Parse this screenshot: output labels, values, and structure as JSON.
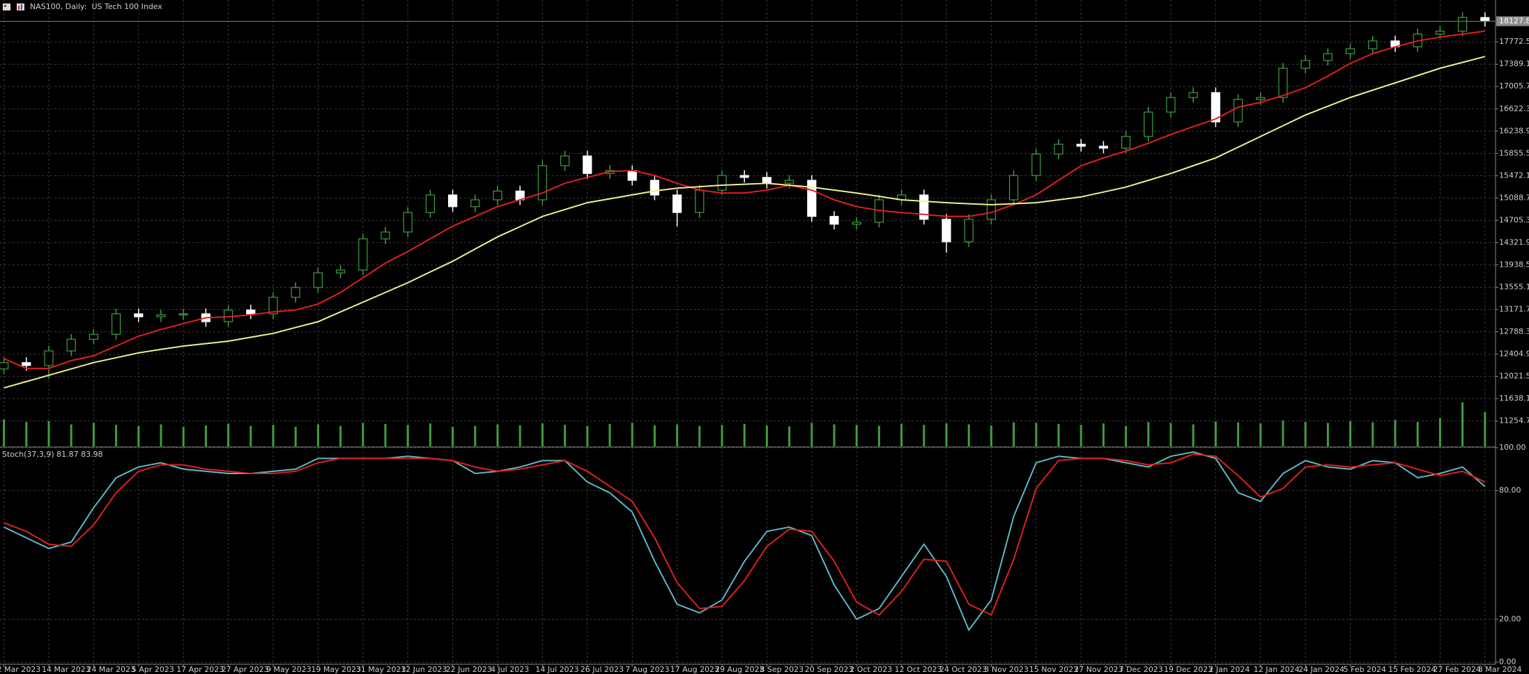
{
  "chart_data": [
    {
      "type": "candlestick",
      "title": "NAS100, Daily:  US Tech 100 Index",
      "categories": [
        "2 Mar 2023",
        null,
        "14 Mar 2023",
        null,
        "24 Mar 2023",
        null,
        "5 Apr 2023",
        null,
        "17 Apr 2023",
        null,
        "27 Apr 2023",
        null,
        "9 May 2023",
        null,
        "19 May 2023",
        null,
        "31 May 2023",
        null,
        "12 Jun 2023",
        null,
        "22 Jun 2023",
        null,
        "4 Jul 2023",
        null,
        "14 Jul 2023",
        null,
        "26 Jul 2023",
        null,
        "7 Aug 2023",
        null,
        "17 Aug 2023",
        null,
        "29 Aug 2023",
        null,
        "8 Sep 2023",
        null,
        "20 Sep 2023",
        null,
        "2 Oct 2023",
        null,
        "12 Oct 2023",
        null,
        "24 Oct 2023",
        null,
        "3 Nov 2023",
        null,
        "15 Nov 2023",
        null,
        "27 Nov 2023",
        null,
        "7 Dec 2023",
        null,
        "19 Dec 2023",
        null,
        "2 Jan 2024",
        null,
        "12 Jan 2024",
        null,
        "24 Jan 2024",
        null,
        "5 Feb 2024",
        null,
        "15 Feb 2024",
        null,
        "27 Feb 2024",
        null,
        "8 Mar 2024"
      ],
      "open": [
        12150,
        12259,
        12209,
        12460,
        12661,
        12745,
        13097,
        13047,
        13080,
        13097,
        12963,
        13164,
        13097,
        13382,
        13550,
        13801,
        13851,
        14387,
        14505,
        14840,
        15141,
        14940,
        15058,
        15208,
        15058,
        15644,
        15812,
        15510,
        15560,
        15393,
        15141,
        14840,
        15225,
        15476,
        15443,
        15343,
        15393,
        14773,
        14639,
        14673,
        15058,
        15141,
        14723,
        14337,
        14723,
        15058,
        15476,
        15845,
        16013,
        15979,
        15946,
        16147,
        16566,
        16817,
        16901,
        16398,
        16784,
        16817,
        17320,
        17454,
        17571,
        17655,
        17789,
        17689,
        17907,
        17957,
        18192
      ],
      "high": [
        12349,
        12349,
        12550,
        12751,
        12835,
        13187,
        13187,
        13170,
        13187,
        13187,
        13254,
        13254,
        13472,
        13640,
        13891,
        13941,
        14477,
        14595,
        14930,
        15231,
        15231,
        15148,
        15298,
        15298,
        15734,
        15902,
        15902,
        15650,
        15650,
        15483,
        15231,
        15315,
        15566,
        15566,
        15533,
        15483,
        15483,
        14863,
        14763,
        15148,
        15231,
        15231,
        14813,
        14813,
        15148,
        15566,
        15935,
        16103,
        16103,
        16069,
        16237,
        16656,
        16907,
        16991,
        16991,
        16874,
        16907,
        17410,
        17544,
        17661,
        17745,
        17879,
        17879,
        17997,
        18047,
        18282,
        18282
      ],
      "low": [
        12060,
        12119,
        11980,
        12370,
        12571,
        12655,
        12957,
        12957,
        12990,
        12873,
        12873,
        13007,
        13007,
        13292,
        13460,
        13711,
        13761,
        14297,
        14415,
        14750,
        14850,
        14850,
        14968,
        14968,
        14968,
        15554,
        15420,
        15420,
        15303,
        15051,
        14600,
        14750,
        15135,
        15353,
        15253,
        15253,
        14683,
        14549,
        14549,
        14583,
        14968,
        14633,
        14150,
        14247,
        14633,
        14968,
        15386,
        15755,
        15889,
        15856,
        15856,
        16057,
        16476,
        16727,
        16308,
        16308,
        16694,
        16727,
        17230,
        17364,
        17481,
        17565,
        17599,
        17599,
        17817,
        17867,
        18038
      ],
      "close": [
        12259,
        12209,
        12460,
        12661,
        12745,
        13097,
        13047,
        13080,
        13097,
        12963,
        13164,
        13097,
        13382,
        13550,
        13801,
        13851,
        14387,
        14505,
        14840,
        15141,
        14940,
        15058,
        15208,
        15058,
        15644,
        15812,
        15510,
        15560,
        15393,
        15141,
        14840,
        15225,
        15476,
        15443,
        15343,
        15393,
        14773,
        14639,
        14673,
        15058,
        15141,
        14723,
        14337,
        14723,
        15058,
        15476,
        15845,
        16013,
        15979,
        15946,
        16147,
        16566,
        16817,
        16901,
        16398,
        16784,
        16817,
        17320,
        17454,
        17571,
        17655,
        17789,
        17689,
        17907,
        17957,
        18192,
        18127.8
      ],
      "ma_lines": [
        {
          "color": "#e0201f",
          "values": [
            12327,
            12159,
            12159,
            12293,
            12377,
            12544,
            12712,
            12829,
            12930,
            13030,
            13047,
            13081,
            13131,
            13164,
            13265,
            13466,
            13717,
            13969,
            14170,
            14388,
            14605,
            14773,
            14941,
            15058,
            15175,
            15342,
            15443,
            15544,
            15561,
            15477,
            15342,
            15225,
            15175,
            15175,
            15225,
            15309,
            15225,
            15058,
            14941,
            14874,
            14840,
            14807,
            14773,
            14773,
            14840,
            14974,
            15142,
            15393,
            15644,
            15778,
            15896,
            16030,
            16181,
            16315,
            16449,
            16650,
            16733,
            16851,
            16985,
            17186,
            17404,
            17571,
            17689,
            17789,
            17856,
            17907,
            17957
          ]
        },
        {
          "color": "#f2f08c",
          "values": [
            11824,
            11933,
            12042,
            12151,
            12260,
            12343,
            12427,
            12486,
            12544,
            12586,
            12628,
            12695,
            12762,
            12863,
            12963,
            13131,
            13298,
            13466,
            13633,
            13818,
            14002,
            14212,
            14421,
            14597,
            14773,
            14891,
            15008,
            15075,
            15142,
            15209,
            15259,
            15284,
            15309,
            15326,
            15342,
            15309,
            15276,
            15225,
            15175,
            15117,
            15058,
            15033,
            15008,
            14991,
            14974,
            14991,
            15008,
            15058,
            15108,
            15192,
            15276,
            15393,
            15510,
            15644,
            15778,
            15963,
            16147,
            16331,
            16516,
            16666,
            16817,
            16943,
            17069,
            17194,
            17320,
            17420,
            17521
          ]
        }
      ],
      "volume": [
        55,
        50,
        52,
        45,
        48,
        44,
        42,
        45,
        40,
        43,
        46,
        42,
        44,
        40,
        45,
        42,
        48,
        46,
        44,
        47,
        40,
        42,
        45,
        43,
        47,
        44,
        42,
        46,
        48,
        43,
        45,
        42,
        44,
        46,
        43,
        41,
        48,
        45,
        44,
        42,
        46,
        44,
        47,
        45,
        43,
        49,
        48,
        46,
        44,
        47,
        42,
        50,
        48,
        45,
        51,
        49,
        47,
        53,
        50,
        48,
        52,
        49,
        54,
        50,
        58,
        90,
        70
      ],
      "vlim": [
        0,
        100
      ],
      "volume_color": "#3f9f3f",
      "bull_color": "#3f9f3f",
      "bear_color": "#ffffff",
      "ylim": [
        10820,
        18493
      ],
      "yticks": [
        17772.5,
        17389.1,
        17005.7,
        16622.3,
        16238.9,
        15855.5,
        15472.1,
        15088.7,
        14705.3,
        14321.9,
        13938.5,
        13555.1,
        13171.7,
        12788.3,
        12404.9,
        12021.5,
        11638.1,
        11254.7
      ],
      "grid": true
    },
    {
      "type": "stochastic",
      "title": "Stoch(37,3,9) 81.87 83.98",
      "series": [
        {
          "color": "#5fb8c8",
          "values": [
            63,
            58,
            53,
            56,
            72,
            86,
            91,
            93,
            90,
            89,
            88,
            88,
            89,
            90,
            95,
            95,
            95,
            95,
            96,
            95,
            94,
            88,
            89,
            91,
            94,
            94,
            84,
            79,
            70,
            47,
            27,
            23,
            29,
            47,
            61,
            63,
            59,
            36,
            20,
            25,
            40,
            55,
            40,
            15,
            29,
            68,
            93,
            96,
            95,
            95,
            93,
            91,
            96,
            98,
            95,
            79,
            75,
            88,
            94,
            91,
            90,
            94,
            93,
            86,
            88,
            91,
            81.87
          ]
        },
        {
          "color": "#e0201f",
          "values": [
            65,
            61,
            55,
            54,
            64,
            79,
            89,
            92,
            92,
            90,
            89,
            88,
            88,
            89,
            93,
            95,
            95,
            95,
            95,
            95,
            94,
            91,
            89,
            90,
            92,
            94,
            89,
            82,
            75,
            58,
            37,
            25,
            26,
            38,
            54,
            62,
            61,
            47,
            28,
            22,
            33,
            48,
            47,
            27,
            22,
            48,
            81,
            94,
            95,
            95,
            94,
            92,
            93,
            97,
            96,
            87,
            77,
            81,
            91,
            92,
            91,
            92,
            93,
            90,
            87,
            89,
            83.98
          ]
        }
      ],
      "ylim": [
        0,
        100
      ],
      "yticks": [
        {
          "value": 100,
          "label": "100.00"
        },
        {
          "value": 80,
          "label": "80.00"
        },
        {
          "value": 20,
          "label": "20.00"
        },
        {
          "value": 0,
          "label": "0.00"
        }
      ],
      "grid": true
    }
  ]
}
